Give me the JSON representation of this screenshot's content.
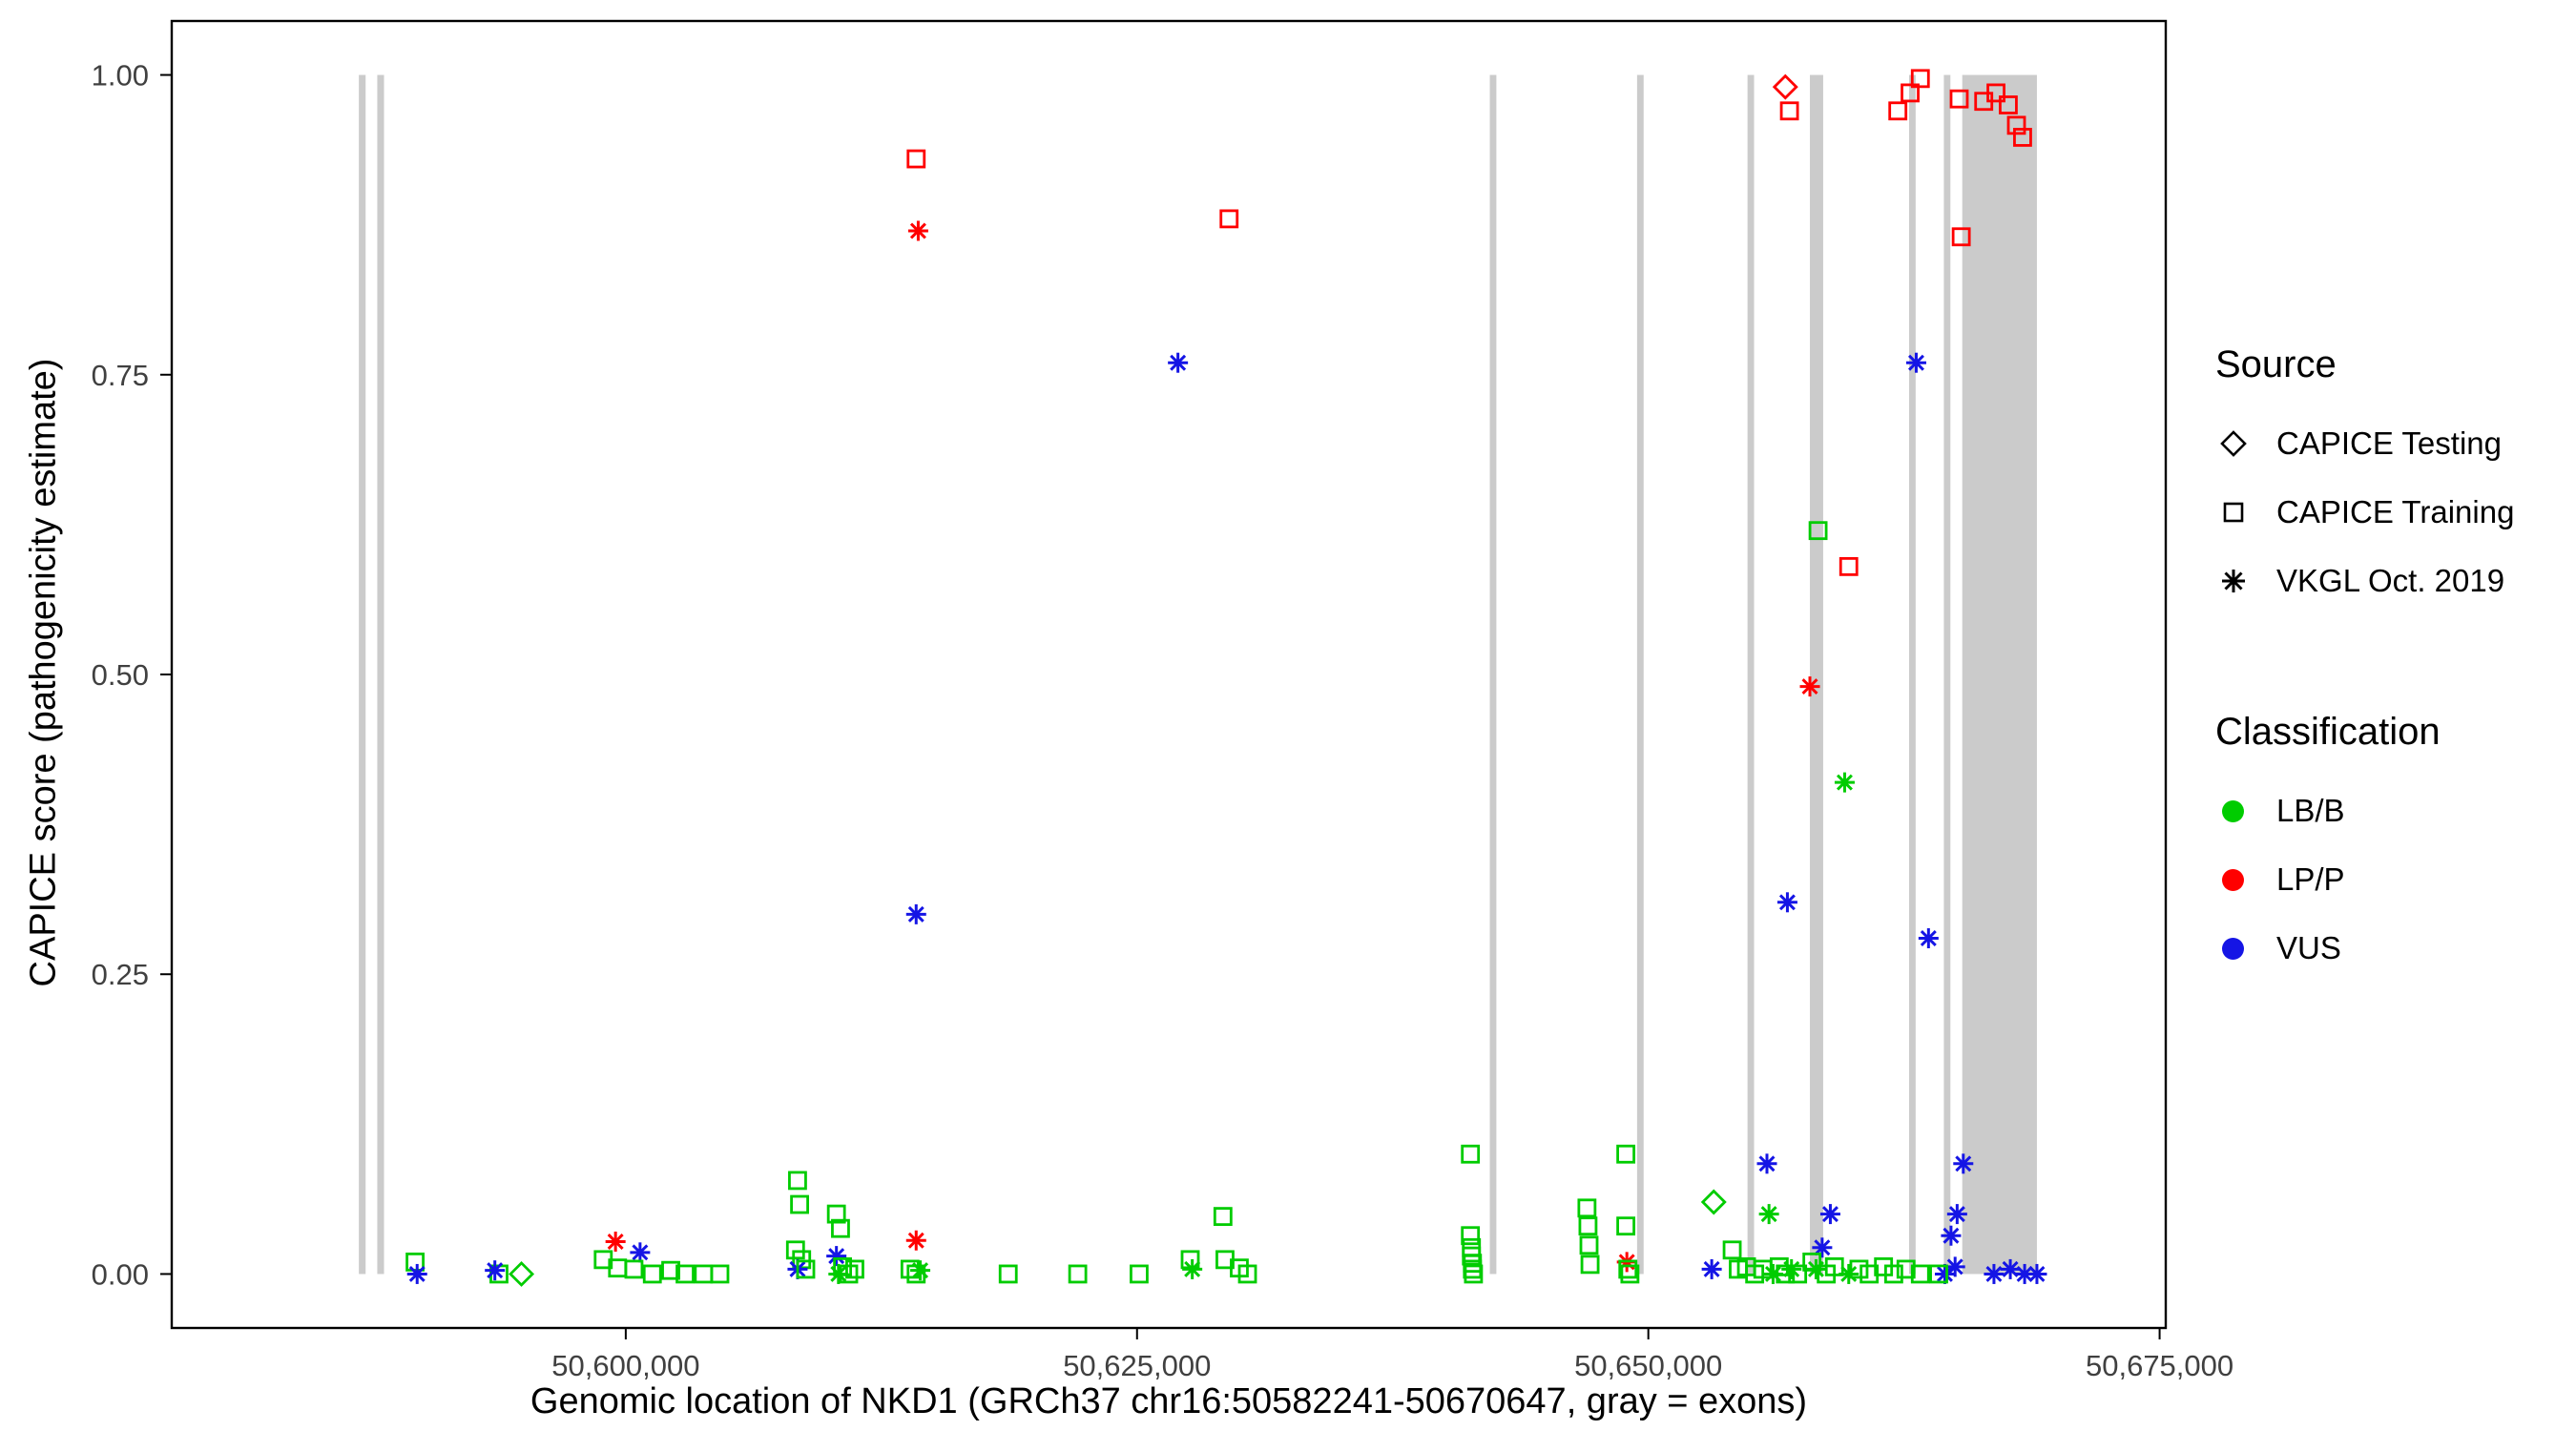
{
  "chart_data": {
    "type": "scatter",
    "title": "",
    "xlabel": "Genomic location of NKD1 (GRCh37 chr16:50582241-50670647, gray = exons)",
    "ylabel": "CAPICE score (pathogenicity estimate)",
    "gene_region": "GRCh37 chr16:50582241-50670647",
    "x_range": [
      50577800,
      50675300
    ],
    "y_range": [
      -0.045,
      1.045
    ],
    "ylim": [
      0,
      1
    ],
    "x_ticks": [
      {
        "value": 50600000,
        "label": "50,600,000"
      },
      {
        "value": 50625000,
        "label": "50,625,000"
      },
      {
        "value": 50650000,
        "label": "50,650,000"
      },
      {
        "value": 50675000,
        "label": "50,675,000"
      }
    ],
    "y_ticks": [
      {
        "value": 0.0,
        "label": "0.00"
      },
      {
        "value": 0.25,
        "label": "0.25"
      },
      {
        "value": 0.5,
        "label": "0.50"
      },
      {
        "value": 0.75,
        "label": "0.75"
      },
      {
        "value": 1.0,
        "label": "1.00"
      }
    ],
    "grid": false,
    "exon_color": "#CBCBCB",
    "exons": [
      [
        50586950,
        50587280
      ],
      [
        50587850,
        50588180
      ],
      [
        50642250,
        50642570
      ],
      [
        50649450,
        50649770
      ],
      [
        50654850,
        50655170
      ],
      [
        50657900,
        50658550
      ],
      [
        50662750,
        50663070
      ],
      [
        50664450,
        50664770
      ],
      [
        50665350,
        50669000
      ]
    ],
    "colors": {
      "LB": "#00CC00",
      "LP": "#FF0000",
      "VUS": "#1515E5"
    },
    "marker_by_source": {
      "test": "diamond",
      "train": "square",
      "vkgl": "asterisk"
    },
    "point_format": [
      "source (test=CAPICE Testing, train=CAPICE Training, vkgl=VKGL Oct. 2019)",
      "classification (LB=LB/B, LP=LP/P, VUS=VUS)",
      "genomic_position",
      "capice_score"
    ],
    "points": [
      [
        "train",
        "LP",
        50614200,
        0.93
      ],
      [
        "vkgl",
        "LP",
        50614300,
        0.87
      ],
      [
        "train",
        "LP",
        50629500,
        0.88
      ],
      [
        "vkgl",
        "VUS",
        50627000,
        0.76
      ],
      [
        "vkgl",
        "VUS",
        50614200,
        0.3
      ],
      [
        "test",
        "LP",
        50656700,
        0.99
      ],
      [
        "train",
        "LP",
        50656900,
        0.97
      ],
      [
        "train",
        "LP",
        50662200,
        0.97
      ],
      [
        "train",
        "LP",
        50662800,
        0.985
      ],
      [
        "train",
        "LP",
        50663300,
        0.997
      ],
      [
        "train",
        "LP",
        50665200,
        0.98
      ],
      [
        "train",
        "LP",
        50665300,
        0.865
      ],
      [
        "train",
        "LP",
        50666400,
        0.978
      ],
      [
        "train",
        "LP",
        50667000,
        0.985
      ],
      [
        "train",
        "LP",
        50667600,
        0.975
      ],
      [
        "train",
        "LP",
        50668000,
        0.958
      ],
      [
        "train",
        "LP",
        50668300,
        0.948
      ],
      [
        "train",
        "LB",
        50658300,
        0.62
      ],
      [
        "train",
        "LP",
        50659800,
        0.59
      ],
      [
        "vkgl",
        "LP",
        50657900,
        0.49
      ],
      [
        "vkgl",
        "LB",
        50659600,
        0.41
      ],
      [
        "vkgl",
        "VUS",
        50663100,
        0.76
      ],
      [
        "vkgl",
        "VUS",
        50656800,
        0.31
      ],
      [
        "vkgl",
        "VUS",
        50663700,
        0.28
      ],
      [
        "train",
        "LB",
        50589700,
        0.01
      ],
      [
        "vkgl",
        "VUS",
        50589800,
        0.0
      ],
      [
        "train",
        "LB",
        50593800,
        0.0
      ],
      [
        "vkgl",
        "VUS",
        50593600,
        0.003
      ],
      [
        "test",
        "LB",
        50594900,
        0.0
      ],
      [
        "vkgl",
        "LP",
        50599500,
        0.027
      ],
      [
        "vkgl",
        "VUS",
        50600700,
        0.018
      ],
      [
        "train",
        "LB",
        50598900,
        0.012
      ],
      [
        "train",
        "LB",
        50599600,
        0.005
      ],
      [
        "train",
        "LB",
        50600400,
        0.004
      ],
      [
        "train",
        "LB",
        50601300,
        0.0
      ],
      [
        "train",
        "LB",
        50602200,
        0.003
      ],
      [
        "train",
        "LB",
        50602900,
        0.0
      ],
      [
        "train",
        "LB",
        50603800,
        0.0
      ],
      [
        "train",
        "LB",
        50604600,
        0.0
      ],
      [
        "train",
        "LB",
        50608400,
        0.078
      ],
      [
        "train",
        "LB",
        50608500,
        0.058
      ],
      [
        "train",
        "LB",
        50610300,
        0.05
      ],
      [
        "train",
        "LB",
        50610500,
        0.038
      ],
      [
        "train",
        "LB",
        50608300,
        0.02
      ],
      [
        "train",
        "LB",
        50608600,
        0.012
      ],
      [
        "vkgl",
        "VUS",
        50608400,
        0.004
      ],
      [
        "train",
        "LB",
        50608800,
        0.004
      ],
      [
        "vkgl",
        "VUS",
        50610300,
        0.015
      ],
      [
        "train",
        "LB",
        50610600,
        0.006
      ],
      [
        "vkgl",
        "LB",
        50610400,
        0.0
      ],
      [
        "train",
        "LB",
        50610900,
        0.0
      ],
      [
        "train",
        "LB",
        50611200,
        0.004
      ],
      [
        "vkgl",
        "LP",
        50614200,
        0.028
      ],
      [
        "train",
        "LB",
        50613900,
        0.004
      ],
      [
        "train",
        "LB",
        50614200,
        0.0
      ],
      [
        "vkgl",
        "LB",
        50614400,
        0.003
      ],
      [
        "train",
        "LB",
        50618700,
        0.0
      ],
      [
        "train",
        "LB",
        50622100,
        0.0
      ],
      [
        "train",
        "LB",
        50625100,
        0.0
      ],
      [
        "train",
        "LB",
        50627600,
        0.012
      ],
      [
        "vkgl",
        "LB",
        50627700,
        0.004
      ],
      [
        "train",
        "LB",
        50629200,
        0.048
      ],
      [
        "train",
        "LB",
        50629300,
        0.012
      ],
      [
        "train",
        "LB",
        50630000,
        0.005
      ],
      [
        "train",
        "LB",
        50630400,
        0.0
      ],
      [
        "train",
        "LB",
        50641300,
        0.1
      ],
      [
        "train",
        "LB",
        50641300,
        0.032
      ],
      [
        "train",
        "LB",
        50641350,
        0.022
      ],
      [
        "train",
        "LB",
        50641350,
        0.015
      ],
      [
        "train",
        "LB",
        50641400,
        0.009
      ],
      [
        "train",
        "LB",
        50641400,
        0.004
      ],
      [
        "train",
        "LB",
        50641450,
        0.0
      ],
      [
        "train",
        "LB",
        50647000,
        0.055
      ],
      [
        "train",
        "LB",
        50647050,
        0.04
      ],
      [
        "train",
        "LB",
        50647100,
        0.024
      ],
      [
        "train",
        "LB",
        50647150,
        0.008
      ],
      [
        "train",
        "LB",
        50648900,
        0.1
      ],
      [
        "train",
        "LB",
        50648900,
        0.04
      ],
      [
        "vkgl",
        "LP",
        50648950,
        0.01
      ],
      [
        "train",
        "LB",
        50649000,
        0.004
      ],
      [
        "train",
        "LB",
        50649100,
        0.0
      ],
      [
        "test",
        "LB",
        50653200,
        0.06
      ],
      [
        "vkgl",
        "VUS",
        50653100,
        0.004
      ],
      [
        "train",
        "LB",
        50654100,
        0.02
      ],
      [
        "train",
        "LB",
        50654400,
        0.004
      ],
      [
        "vkgl",
        "VUS",
        50655800,
        0.092
      ],
      [
        "vkgl",
        "LB",
        50655900,
        0.05
      ],
      [
        "train",
        "LB",
        50654800,
        0.006
      ],
      [
        "train",
        "LB",
        50655200,
        0.0
      ],
      [
        "train",
        "LB",
        50655600,
        0.004
      ],
      [
        "vkgl",
        "LB",
        50656100,
        0.0
      ],
      [
        "train",
        "LB",
        50656400,
        0.006
      ],
      [
        "train",
        "LB",
        50656700,
        0.0
      ],
      [
        "vkgl",
        "LB",
        50657000,
        0.004
      ],
      [
        "train",
        "LB",
        50657300,
        0.0
      ],
      [
        "vkgl",
        "VUS",
        50658900,
        0.05
      ],
      [
        "vkgl",
        "VUS",
        50658500,
        0.022
      ],
      [
        "train",
        "LB",
        50658000,
        0.01
      ],
      [
        "vkgl",
        "LB",
        50658200,
        0.004
      ],
      [
        "train",
        "LB",
        50658700,
        0.0
      ],
      [
        "train",
        "LB",
        50659100,
        0.006
      ],
      [
        "vkgl",
        "LB",
        50659800,
        0.0
      ],
      [
        "train",
        "LB",
        50660300,
        0.004
      ],
      [
        "train",
        "LB",
        50660800,
        0.0
      ],
      [
        "train",
        "LB",
        50661500,
        0.006
      ],
      [
        "train",
        "LB",
        50662000,
        0.0
      ],
      [
        "train",
        "LB",
        50662600,
        0.004
      ],
      [
        "train",
        "LB",
        50663300,
        0.0
      ],
      [
        "vkgl",
        "VUS",
        50665400,
        0.092
      ],
      [
        "vkgl",
        "VUS",
        50665100,
        0.05
      ],
      [
        "vkgl",
        "VUS",
        50664800,
        0.032
      ],
      [
        "vkgl",
        "VUS",
        50665000,
        0.006
      ],
      [
        "vkgl",
        "VUS",
        50664500,
        0.0
      ],
      [
        "train",
        "LB",
        50664200,
        0.0
      ],
      [
        "vkgl",
        "VUS",
        50666900,
        0.0
      ],
      [
        "vkgl",
        "VUS",
        50667700,
        0.004
      ],
      [
        "vkgl",
        "VUS",
        50668400,
        0.0
      ],
      [
        "vkgl",
        "VUS",
        50669000,
        0.0
      ]
    ]
  },
  "legend": {
    "source": {
      "title": "Source",
      "items": [
        {
          "label": "CAPICE Testing",
          "marker": "diamond"
        },
        {
          "label": "CAPICE Training",
          "marker": "square"
        },
        {
          "label": "VKGL Oct. 2019",
          "marker": "asterisk"
        }
      ]
    },
    "classification": {
      "title": "Classification",
      "items": [
        {
          "label": "LB/B",
          "color": "#00CC00"
        },
        {
          "label": "LP/P",
          "color": "#FF0000"
        },
        {
          "label": "VUS",
          "color": "#1515E5"
        }
      ]
    }
  }
}
